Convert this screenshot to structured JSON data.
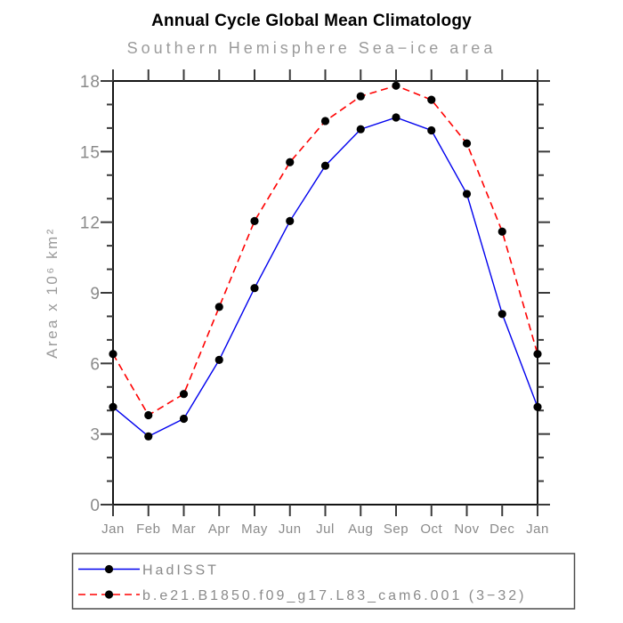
{
  "title": "Annual Cycle Global Mean Climatology",
  "subtitle": "Southern Hemisphere Sea−ice area",
  "chart_data": {
    "type": "line",
    "categories": [
      "Jan",
      "Feb",
      "Mar",
      "Apr",
      "May",
      "Jun",
      "Jul",
      "Aug",
      "Sep",
      "Oct",
      "Nov",
      "Dec",
      "Jan"
    ],
    "series": [
      {
        "name": "HadISST",
        "line_color": "#0000ee",
        "line_style": "solid",
        "marker": "filled-circle",
        "marker_color": "#000000",
        "values": [
          4.15,
          2.9,
          3.65,
          6.15,
          9.2,
          12.05,
          14.4,
          15.95,
          16.45,
          15.9,
          13.2,
          8.1,
          4.15
        ]
      },
      {
        "name": "b.e21.B1850.f09_g17.L83_cam6.001 (3−32)",
        "line_color": "#ff0000",
        "line_style": "dashed",
        "marker": "filled-circle",
        "marker_color": "#000000",
        "values": [
          6.4,
          3.8,
          4.7,
          8.4,
          12.05,
          14.55,
          16.3,
          17.35,
          17.8,
          17.2,
          15.35,
          11.6,
          6.4
        ]
      }
    ],
    "xlabel": "",
    "ylabel": "Area x 10⁶ km²",
    "ylim": [
      0,
      18
    ],
    "ytick_labels": [
      "0",
      "3",
      "6",
      "9",
      "12",
      "15",
      "18"
    ],
    "ytick_step": 3,
    "yminor_step": 1,
    "grid": false,
    "legend_position": "bottom-left-box"
  },
  "palette": {
    "background": "#ffffff",
    "title_color": "#000000",
    "subtitle_color": "#9b9b9b",
    "tick_label_color": "#8a8a8a",
    "frame_color": "#141414",
    "tick_color": "#3a3a3a",
    "legend_border_color": "#4a4a4a"
  }
}
